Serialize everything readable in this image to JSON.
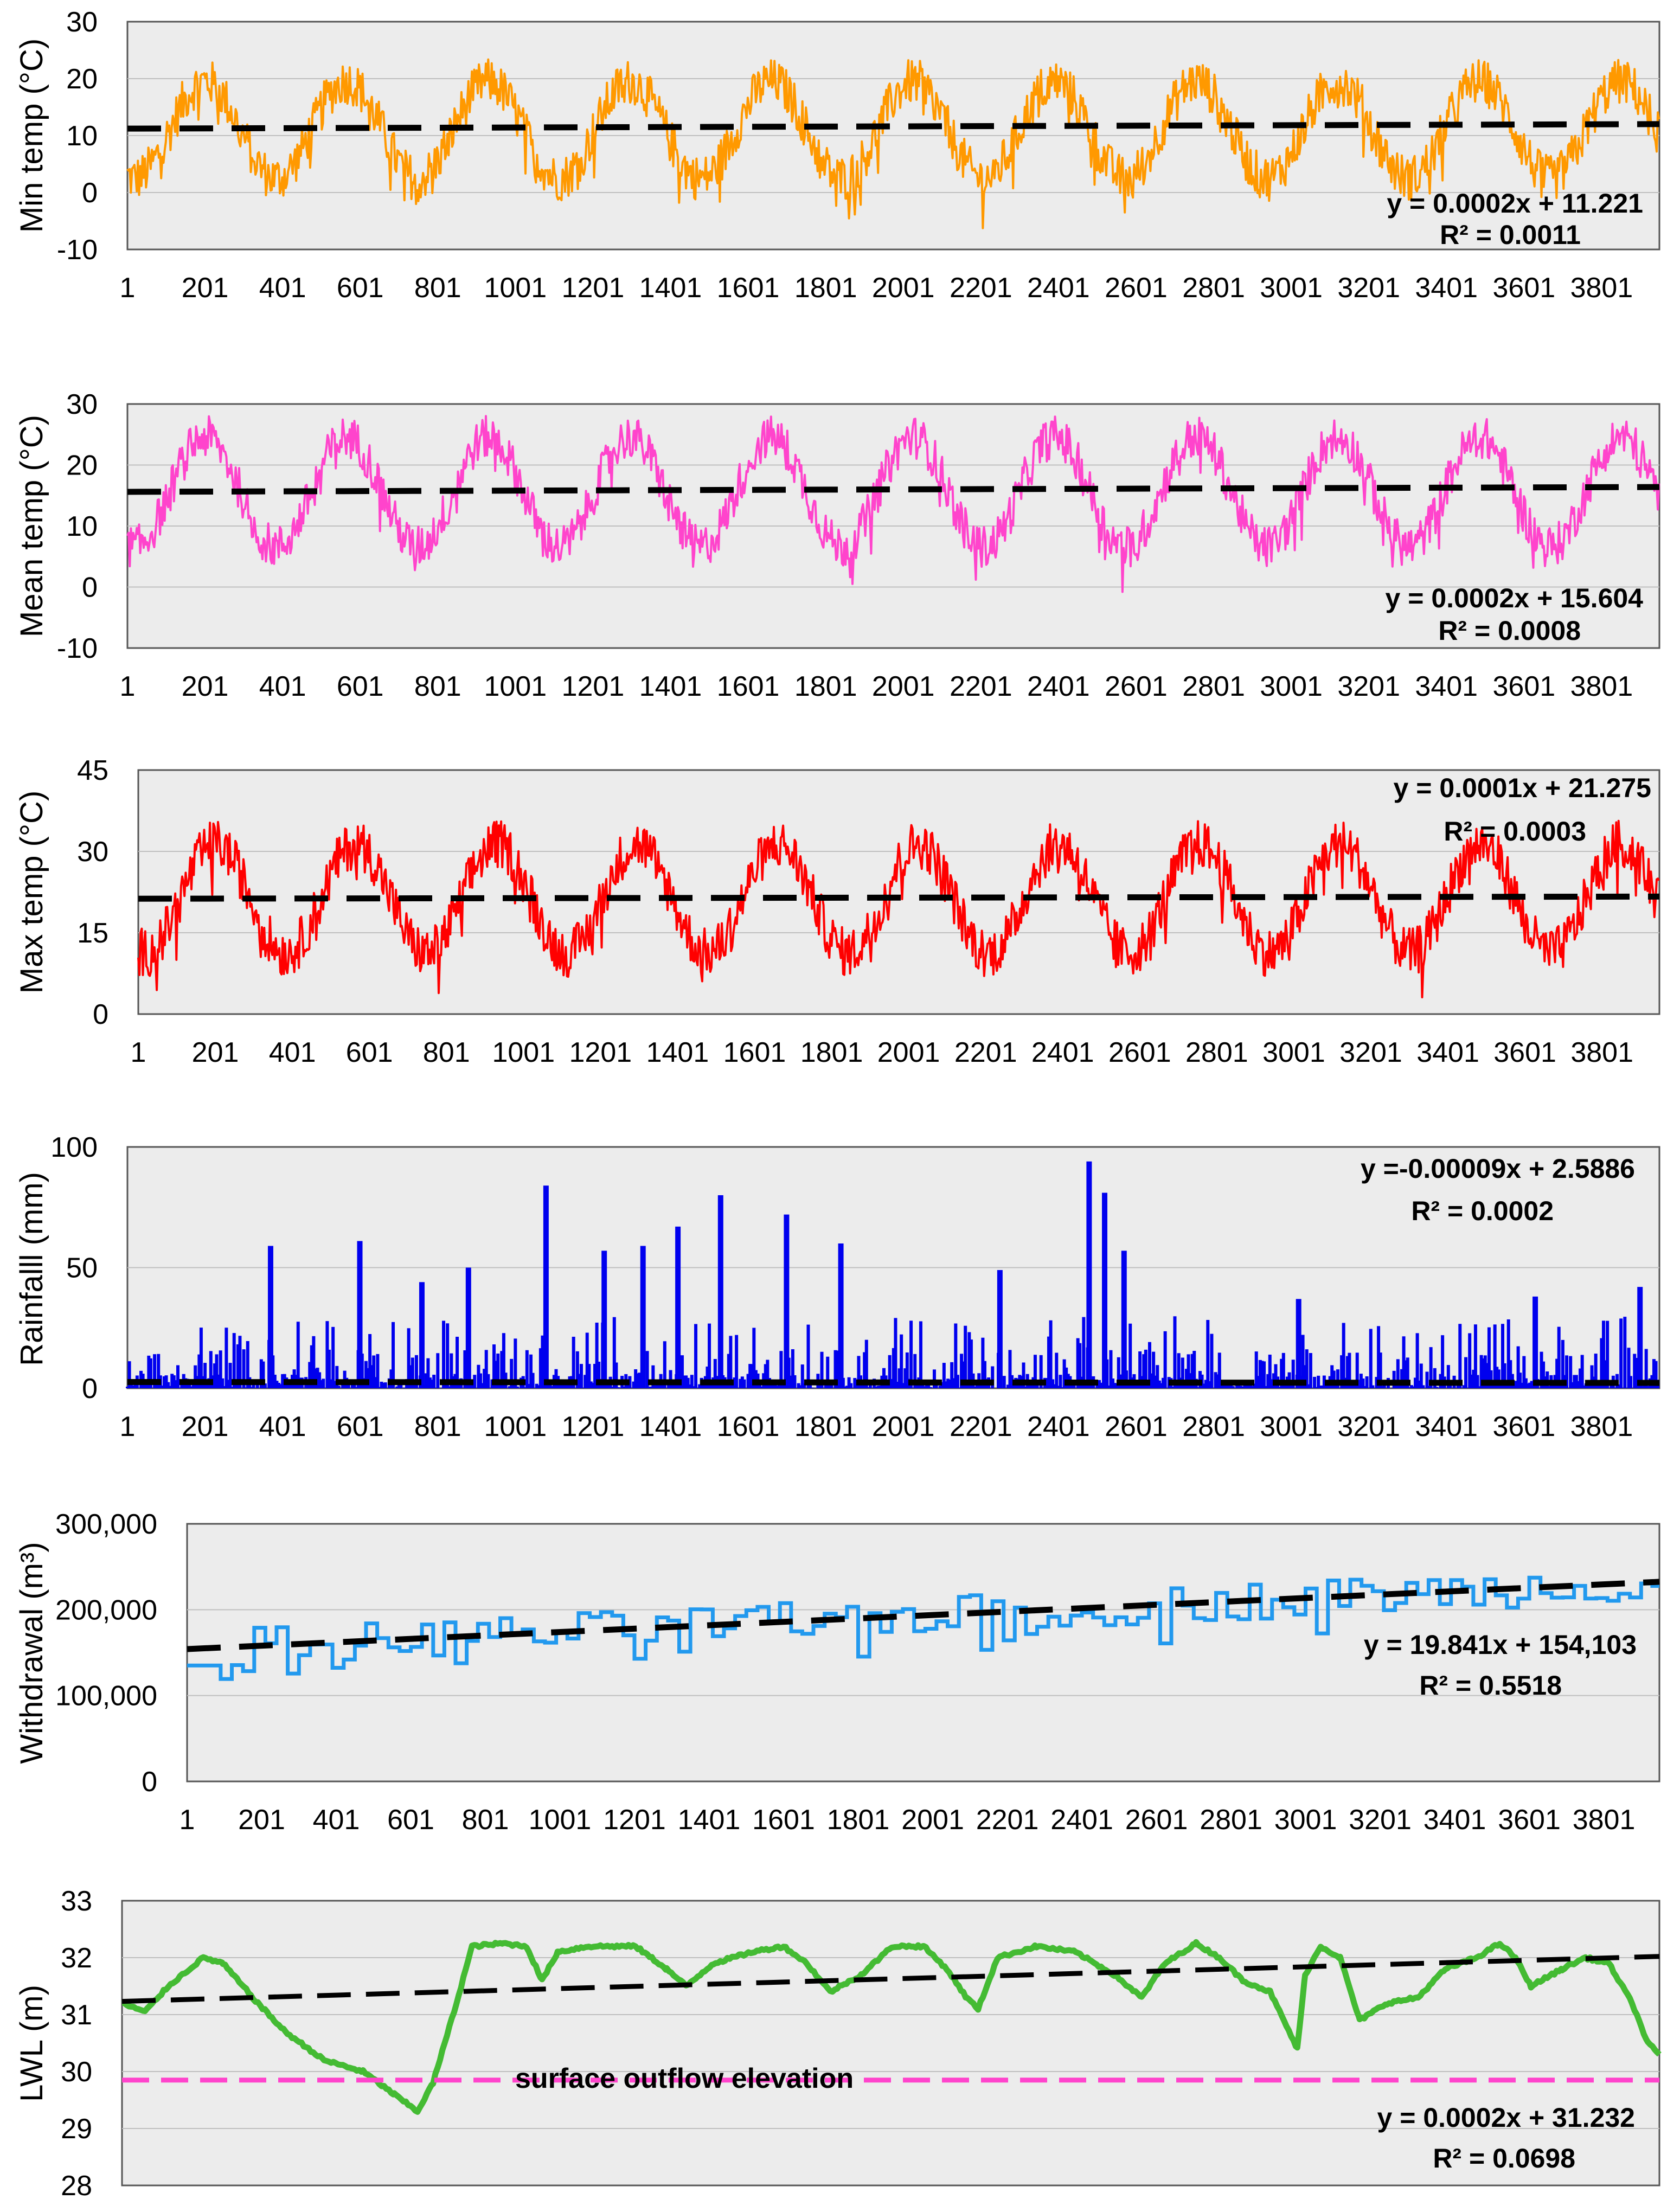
{
  "chart_data": [
    {
      "type": "line",
      "ylabel": "Min temp (°C)",
      "ylim": [
        -10,
        30
      ],
      "yticks": [
        "-10",
        "0",
        "10",
        "20",
        "30"
      ],
      "x_tick_labels": [
        "1",
        "201",
        "401",
        "601",
        "801",
        "1001",
        "1201",
        "1401",
        "1601",
        "1801",
        "2001",
        "2201",
        "2401",
        "2601",
        "2801",
        "3001",
        "3201",
        "3401",
        "3601",
        "3801"
      ],
      "x_range": [
        1,
        3950
      ],
      "series_color": "#ff9900",
      "pattern": {
        "mean": 11,
        "amplitude": 8.5,
        "period": 365,
        "phase": 110,
        "noise": 4,
        "min": -10,
        "max": 26
      },
      "trend": {
        "slope": 0.0002,
        "intercept": 11.221
      },
      "equation": "y = 0.0002x + 11.221",
      "r2": "R² = 0.0011"
    },
    {
      "type": "line",
      "ylabel": "Mean temp (°C)",
      "ylim": [
        -10,
        30
      ],
      "yticks": [
        "-10",
        "0",
        "10",
        "20",
        "30"
      ],
      "x_tick_labels": [
        "1",
        "201",
        "401",
        "601",
        "801",
        "1001",
        "1201",
        "1401",
        "1601",
        "1801",
        "2001",
        "2201",
        "2401",
        "2601",
        "2801",
        "3001",
        "3201",
        "3401",
        "3601",
        "3801"
      ],
      "x_range": [
        1,
        3950
      ],
      "series_color": "#ff44cc",
      "pattern": {
        "mean": 15.6,
        "amplitude": 9,
        "period": 365,
        "phase": 110,
        "noise": 3.5,
        "min": -3,
        "max": 30
      },
      "trend": {
        "slope": 0.0002,
        "intercept": 15.604
      },
      "equation": "y = 0.0002x + 15.604",
      "r2": "R² = 0.0008"
    },
    {
      "type": "line",
      "ylabel": "Max temp (°C)",
      "ylim": [
        0,
        45
      ],
      "yticks": [
        "0",
        "15",
        "30",
        "45"
      ],
      "x_tick_labels": [
        "1",
        "201",
        "401",
        "601",
        "801",
        "1001",
        "1201",
        "1401",
        "1601",
        "1801",
        "2001",
        "2201",
        "2401",
        "2601",
        "2801",
        "3001",
        "3201",
        "3401",
        "3601",
        "3801"
      ],
      "x_range": [
        1,
        3950
      ],
      "series_color": "#ff0000",
      "pattern": {
        "mean": 21.3,
        "amplitude": 10,
        "period": 365,
        "phase": 110,
        "noise": 4.5,
        "min": 0,
        "max": 40
      },
      "trend": {
        "slope": 0.0001,
        "intercept": 21.275
      },
      "equation": "y = 0.0001x + 21.275",
      "r2": "R² = 0.0003"
    },
    {
      "type": "bar",
      "ylabel": "Rainfalll (mm)",
      "ylim": [
        0,
        100
      ],
      "yticks": [
        "0",
        "50",
        "100"
      ],
      "x_tick_labels": [
        "1",
        "201",
        "401",
        "601",
        "801",
        "1001",
        "1201",
        "1401",
        "1601",
        "1801",
        "2001",
        "2201",
        "2401",
        "2601",
        "2801",
        "3001",
        "3201",
        "3401",
        "3601",
        "3801"
      ],
      "x_range": [
        1,
        3950
      ],
      "series_color": "#0000ee",
      "peaks": [
        {
          "x": 370,
          "y": 59
        },
        {
          "x": 600,
          "y": 61
        },
        {
          "x": 760,
          "y": 44
        },
        {
          "x": 880,
          "y": 50
        },
        {
          "x": 1080,
          "y": 84
        },
        {
          "x": 1230,
          "y": 57
        },
        {
          "x": 1330,
          "y": 59
        },
        {
          "x": 1420,
          "y": 67
        },
        {
          "x": 1530,
          "y": 80
        },
        {
          "x": 1700,
          "y": 72
        },
        {
          "x": 1840,
          "y": 60
        },
        {
          "x": 2250,
          "y": 49
        },
        {
          "x": 2480,
          "y": 94
        },
        {
          "x": 2520,
          "y": 81
        },
        {
          "x": 2570,
          "y": 57
        },
        {
          "x": 3020,
          "y": 37
        },
        {
          "x": 3630,
          "y": 38
        },
        {
          "x": 3900,
          "y": 42
        }
      ],
      "trend": {
        "slope": -9e-05,
        "intercept": 2.5886
      },
      "equation": "y =-0.00009x + 2.5886",
      "r2": "R² = 0.0002"
    },
    {
      "type": "line",
      "ylabel": "Withdrawal (m³)",
      "ylim": [
        0,
        300000
      ],
      "yticks": [
        "0",
        "100,000",
        "200,000",
        "300,000"
      ],
      "x_tick_labels": [
        "1",
        "201",
        "401",
        "601",
        "801",
        "1001",
        "1201",
        "1401",
        "1601",
        "1801",
        "2001",
        "2201",
        "2401",
        "2601",
        "2801",
        "3001",
        "3201",
        "3401",
        "3601",
        "3801"
      ],
      "x_range": [
        1,
        3950
      ],
      "series_color": "#2299ee",
      "step_days": 30,
      "trend": {
        "slope": 19.841,
        "intercept": 154103
      },
      "equation": "y = 19.841x + 154,103",
      "r2": "R² = 0.5518"
    },
    {
      "type": "line",
      "ylabel": "LWL (m)",
      "ylim": [
        28,
        33
      ],
      "yticks": [
        "28",
        "29",
        "30",
        "31",
        "32",
        "33"
      ],
      "x_tick_labels": [
        "1",
        "201",
        "401",
        "601",
        "801",
        "1001",
        "1201",
        "1401",
        "1601",
        "1801",
        "2001",
        "2201",
        "2401",
        "2601",
        "2801",
        "3001",
        "3201",
        "3401",
        "3601",
        "3801"
      ],
      "x_range": [
        1,
        3950
      ],
      "series_color": "#44bb33",
      "keypoints": [
        [
          1,
          31.2
        ],
        [
          60,
          31.05
        ],
        [
          120,
          31.5
        ],
        [
          210,
          32.0
        ],
        [
          260,
          31.9
        ],
        [
          350,
          31.2
        ],
        [
          420,
          30.7
        ],
        [
          520,
          30.2
        ],
        [
          620,
          30.0
        ],
        [
          700,
          29.6
        ],
        [
          760,
          29.3
        ],
        [
          800,
          29.8
        ],
        [
          860,
          31.2
        ],
        [
          900,
          32.2
        ],
        [
          980,
          32.25
        ],
        [
          1040,
          32.2
        ],
        [
          1080,
          31.6
        ],
        [
          1120,
          32.1
        ],
        [
          1200,
          32.2
        ],
        [
          1320,
          32.2
        ],
        [
          1400,
          31.8
        ],
        [
          1450,
          31.5
        ],
        [
          1520,
          31.9
        ],
        [
          1620,
          32.1
        ],
        [
          1700,
          32.2
        ],
        [
          1760,
          31.9
        ],
        [
          1820,
          31.4
        ],
        [
          1900,
          31.7
        ],
        [
          1980,
          32.2
        ],
        [
          2060,
          32.2
        ],
        [
          2120,
          31.8
        ],
        [
          2170,
          31.3
        ],
        [
          2200,
          31.1
        ],
        [
          2250,
          32.0
        ],
        [
          2350,
          32.2
        ],
        [
          2450,
          32.1
        ],
        [
          2550,
          31.7
        ],
        [
          2620,
          31.3
        ],
        [
          2680,
          31.9
        ],
        [
          2760,
          32.25
        ],
        [
          2820,
          32.0
        ],
        [
          2880,
          31.6
        ],
        [
          2950,
          31.4
        ],
        [
          3020,
          30.4
        ],
        [
          3040,
          31.7
        ],
        [
          3080,
          32.2
        ],
        [
          3130,
          32.0
        ],
        [
          3180,
          30.9
        ],
        [
          3250,
          31.2
        ],
        [
          3330,
          31.3
        ],
        [
          3400,
          31.8
        ],
        [
          3480,
          32.0
        ],
        [
          3540,
          32.25
        ],
        [
          3580,
          32.0
        ],
        [
          3620,
          31.5
        ],
        [
          3700,
          31.8
        ],
        [
          3760,
          32.0
        ],
        [
          3820,
          31.9
        ],
        [
          3880,
          31.2
        ],
        [
          3920,
          30.5
        ],
        [
          3950,
          30.3
        ]
      ],
      "trend": {
        "slope": 0.0002,
        "intercept": 31.232
      },
      "equation": "y = 0.0002x + 31.232",
      "r2": "R² = 0.0698",
      "reference_line": {
        "value": 29.85,
        "label": "surface outflow elevation",
        "color": "#ff44cc"
      }
    }
  ]
}
